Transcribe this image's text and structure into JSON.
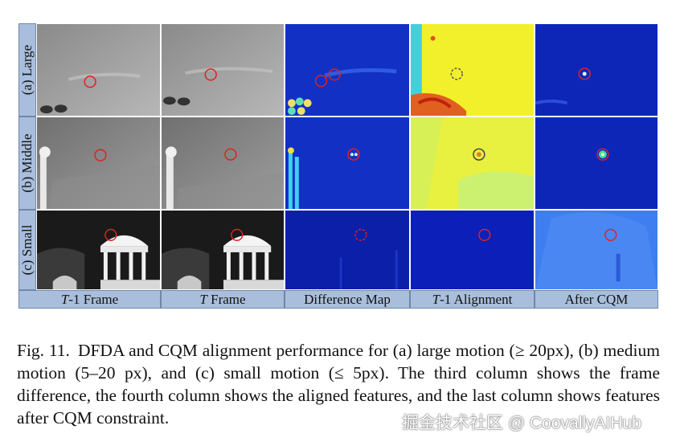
{
  "figure": {
    "row_labels": [
      "(a) Large",
      "(b) Middle",
      "(c) Small"
    ],
    "column_labels": [
      {
        "italic": "T",
        "text": "-1 Frame"
      },
      {
        "italic": "T",
        "text": " Frame"
      },
      {
        "italic": "",
        "text": "Difference Map"
      },
      {
        "italic": "T",
        "text": "-1 Alignment"
      },
      {
        "italic": "",
        "text": "After CQM"
      }
    ]
  },
  "caption": {
    "label": "Fig. 11.",
    "text": "DFDA and CQM alignment performance for (a) large motion (≥ 20px), (b) medium motion (5–20 px), and (c) small motion (≤ 5px). The third column shows the frame difference, the fourth column shows the aligned features, and the last column shows features after CQM constraint."
  },
  "watermark": {
    "text": "掘金技术社区 @ CoovallyAIHub"
  },
  "colors": {
    "label_bg": "#a9bedc",
    "marker_red": "#e02020",
    "heatmap_blue": "#1530c8",
    "heatmap_yellow": "#f0f020"
  }
}
